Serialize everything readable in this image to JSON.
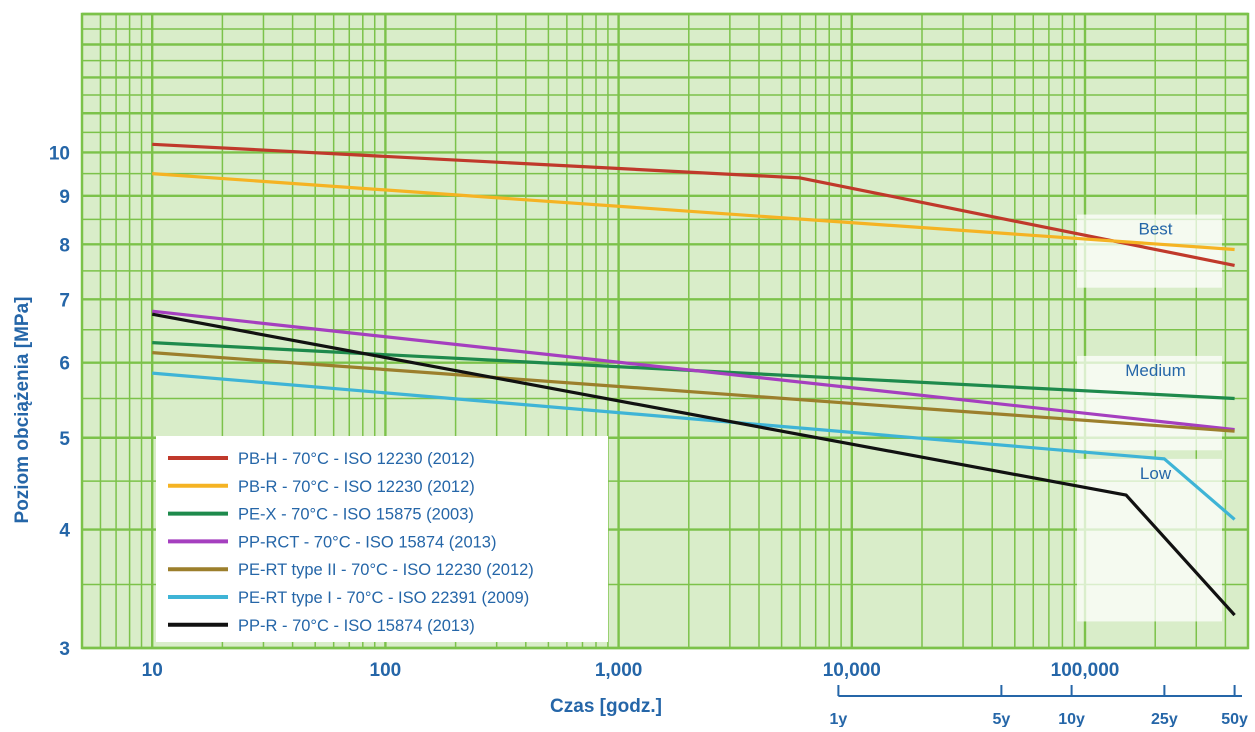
{
  "chart_data": {
    "type": "line",
    "xlabel": "Czas [godz.]",
    "ylabel": "Poziom obciążenia [MPa]",
    "x_scale": "log",
    "y_scale": "log",
    "xlim": [
      5,
      500000
    ],
    "ylim": [
      3,
      14
    ],
    "grid": true,
    "legend_position": "bottom-left",
    "x_ticks": [
      {
        "value": 10,
        "label": "10"
      },
      {
        "value": 100,
        "label": "100"
      },
      {
        "value": 1000,
        "label": "1,000"
      },
      {
        "value": 10000,
        "label": "10,000"
      },
      {
        "value": 100000,
        "label": "100,000"
      }
    ],
    "y_ticks": [
      {
        "value": 10,
        "label": "10"
      },
      {
        "value": 9,
        "label": "9"
      },
      {
        "value": 8,
        "label": "8"
      },
      {
        "value": 7,
        "label": "7"
      },
      {
        "value": 6,
        "label": "6"
      },
      {
        "value": 5,
        "label": "5"
      },
      {
        "value": 4,
        "label": "4"
      },
      {
        "value": 3,
        "label": "3"
      }
    ],
    "year_ticks": [
      {
        "hours": 8760,
        "label": "1y"
      },
      {
        "hours": 43800,
        "label": "5y"
      },
      {
        "hours": 87600,
        "label": "10y"
      },
      {
        "hours": 219000,
        "label": "25y"
      },
      {
        "hours": 438000,
        "label": "50y"
      }
    ],
    "bands": [
      {
        "label": "Best",
        "y_range": [
          7.2,
          8.6
        ]
      },
      {
        "label": "Medium",
        "y_range": [
          4.85,
          6.1
        ]
      },
      {
        "label": "Low",
        "y_range": [
          3.2,
          4.75
        ]
      }
    ],
    "series": [
      {
        "name": "PB-H - 70°C - ISO 12230 (2012)",
        "color": "#c0392b",
        "x": [
          10,
          6000,
          438000
        ],
        "y": [
          10.2,
          9.4,
          7.6
        ]
      },
      {
        "name": "PB-R - 70°C - ISO 12230 (2012)",
        "color": "#f5b323",
        "x": [
          10,
          438000
        ],
        "y": [
          9.5,
          7.9
        ]
      },
      {
        "name": "PE-X - 70°C - ISO 15875 (2003)",
        "color": "#1e8a4c",
        "x": [
          10,
          438000
        ],
        "y": [
          6.3,
          5.5
        ]
      },
      {
        "name": "PP-RCT - 70°C - ISO 15874 (2013)",
        "color": "#a53fbf",
        "x": [
          10,
          438000
        ],
        "y": [
          6.8,
          5.1
        ]
      },
      {
        "name": "PE-RT type II - 70°C - ISO 12230 (2012)",
        "color": "#9c7f2c",
        "x": [
          10,
          438000
        ],
        "y": [
          6.15,
          5.08
        ]
      },
      {
        "name": "PE-RT type I - 70°C - ISO 22391 (2009)",
        "color": "#3eb4d6",
        "x": [
          10,
          219000,
          438000
        ],
        "y": [
          5.85,
          4.75,
          4.1
        ]
      },
      {
        "name": "PP-R - 70°C - ISO 15874 (2013)",
        "color": "#111111",
        "x": [
          10,
          150000,
          438000
        ],
        "y": [
          6.75,
          4.35,
          3.25
        ]
      }
    ],
    "colors": {
      "plot_background": "#d9edc9",
      "grid": "#7cc24a",
      "tick_text": "#2566a8",
      "band_text": "#2566a8",
      "legend_background": "#ffffff",
      "legend_text": "#2566a8"
    }
  }
}
